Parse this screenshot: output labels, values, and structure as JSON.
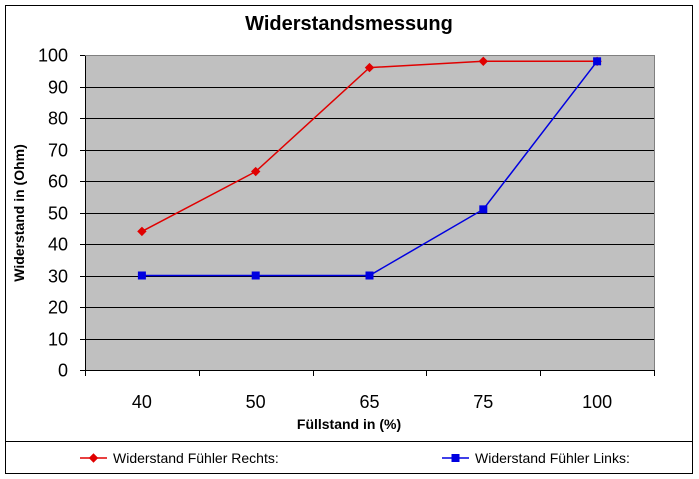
{
  "chart_data": {
    "type": "line",
    "title": "Widerstandsmessung",
    "xlabel": "Füllstand in (%)",
    "ylabel": "Widerstand in (Ohm)",
    "categories": [
      "40",
      "50",
      "65",
      "75",
      "100"
    ],
    "ylim": [
      0,
      100
    ],
    "yticks": [
      0,
      10,
      20,
      30,
      40,
      50,
      60,
      70,
      80,
      90,
      100
    ],
    "yticklabels": [
      "0",
      "10",
      "20",
      "30",
      "40",
      "50",
      "60",
      "70",
      "80",
      "90",
      "100"
    ],
    "grid": true,
    "legend_position": "bottom",
    "plot_background": "#c0c0c0",
    "series": [
      {
        "name": "Widerstand Fühler Rechts:",
        "values": [
          44,
          63,
          96,
          98,
          98
        ],
        "color": "#e00000",
        "marker": "diamond"
      },
      {
        "name": "Widerstand Fühler Links:",
        "values": [
          30,
          30,
          30,
          51,
          98
        ],
        "color": "#0000e0",
        "marker": "square"
      }
    ]
  }
}
